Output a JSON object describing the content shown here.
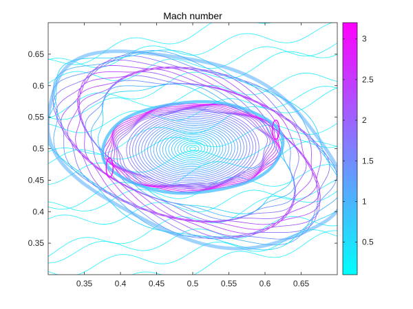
{
  "chart_data": {
    "type": "contour",
    "title": "Mach number",
    "xlabel": "",
    "ylabel": "",
    "xlim": [
      0.3,
      0.7
    ],
    "ylim": [
      0.3,
      0.7
    ],
    "x_ticks": [
      0.35,
      0.4,
      0.45,
      0.5,
      0.55,
      0.6,
      0.65
    ],
    "x_tick_labels": [
      "0.35",
      "0.4",
      "0.45",
      "0.5",
      "0.55",
      "0.6",
      "0.65"
    ],
    "y_ticks": [
      0.35,
      0.4,
      0.45,
      0.5,
      0.55,
      0.6,
      0.65
    ],
    "y_tick_labels": [
      "0.35",
      "0.4",
      "0.45",
      "0.5",
      "0.55",
      "0.6",
      "0.65"
    ],
    "colorbar": {
      "range": [
        0.1,
        3.2
      ],
      "ticks": [
        0.5,
        1,
        1.5,
        2,
        2.5,
        3
      ],
      "tick_labels": [
        "0.5",
        "1",
        "1.5",
        "2",
        "2.5",
        "3"
      ],
      "colormap": "cool",
      "color_low": "#00ffff",
      "color_high": "#ff00ff"
    },
    "features": {
      "vortex_center": [
        0.5,
        0.5
      ],
      "inner_shock_ring": {
        "cx": 0.5,
        "cy": 0.502,
        "rx": 0.125,
        "ry": 0.072,
        "tilt_deg": 3
      },
      "outer_shock_ring": {
        "cx": 0.5,
        "cy": 0.5,
        "rx": 0.195,
        "ry": 0.12,
        "tilt_deg": -27
      },
      "peak_mach": 3.1
    }
  },
  "colors": {
    "axis": "#262626",
    "background": "#ffffff"
  }
}
